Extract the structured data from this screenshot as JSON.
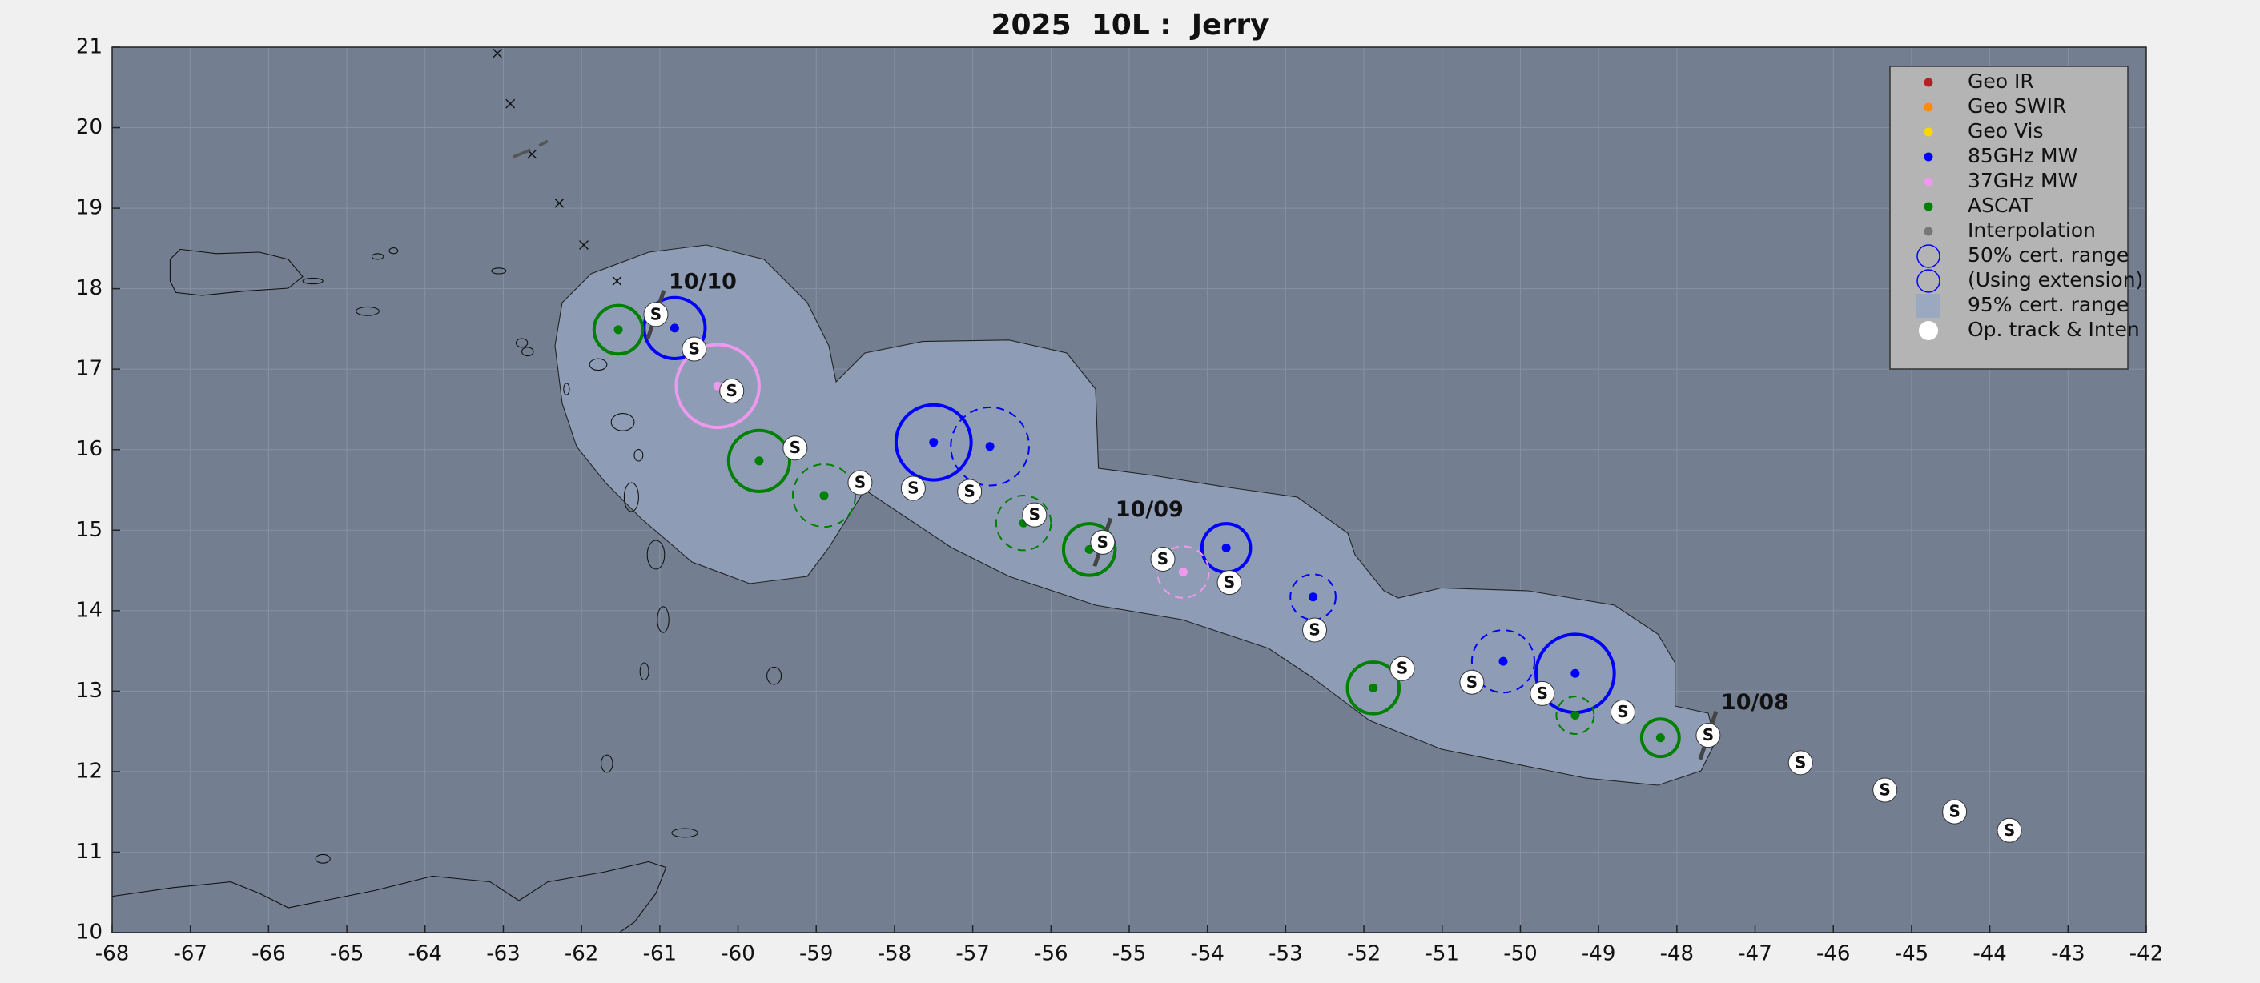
{
  "chart_data": {
    "type": "track",
    "title": "2025  10L :  Jerry",
    "xlim": [
      -68,
      -42
    ],
    "xticks": [
      -68,
      -67,
      -66,
      -65,
      -64,
      -63,
      -62,
      -61,
      -60,
      -59,
      -58,
      -57,
      -56,
      -55,
      -54,
      -53,
      -52,
      -51,
      -50,
      -49,
      -48,
      -47,
      -46,
      -45,
      -44,
      -43,
      -42
    ],
    "ylim": [
      10,
      21
    ],
    "yticks": [
      10,
      11,
      12,
      13,
      14,
      15,
      16,
      17,
      18,
      19,
      20,
      21
    ],
    "grid": true,
    "legend": "upper right",
    "series": [
      {
        "name": "Geo IR",
        "color": "#b22222",
        "x": [],
        "values": [],
        "radius": [],
        "extension": []
      },
      {
        "name": "Geo SWIR",
        "color": "#ff8c00",
        "x": [],
        "values": [],
        "radius": [],
        "extension": []
      },
      {
        "name": "Geo Vis",
        "color": "#ffd700",
        "x": [],
        "values": [],
        "radius": [],
        "extension": []
      },
      {
        "name": "85GHz MW",
        "color": "#0000ff",
        "x": [
          -60.81,
          -57.5,
          -53.76,
          -49.3,
          -56.78,
          -52.65,
          -50.22
        ],
        "values": [
          17.51,
          16.09,
          14.78,
          13.22,
          16.04,
          14.17,
          13.37
        ],
        "radius": [
          0.39,
          0.48,
          0.31,
          0.5,
          0.5,
          0.29,
          0.4
        ],
        "extension": [
          false,
          false,
          false,
          false,
          true,
          true,
          true
        ]
      },
      {
        "name": "37GHz MW",
        "color": "#ee99ee",
        "x": [
          -60.26,
          -54.31
        ],
        "values": [
          16.79,
          14.48
        ],
        "radius": [
          0.53,
          0.33
        ],
        "extension": [
          false,
          true
        ]
      },
      {
        "name": "ASCAT",
        "color": "#008000",
        "x": [
          -61.53,
          -59.73,
          -55.51,
          -51.88,
          -48.21,
          -58.9,
          -56.35,
          -49.3
        ],
        "values": [
          17.49,
          15.86,
          14.76,
          13.04,
          12.42,
          15.43,
          15.09,
          12.7
        ],
        "radius": [
          0.31,
          0.39,
          0.33,
          0.33,
          0.24,
          0.4,
          0.35,
          0.24
        ],
        "extension": [
          false,
          false,
          false,
          false,
          false,
          true,
          true,
          true
        ]
      },
      {
        "name": "Interpolation",
        "color": "#777777",
        "x": [],
        "values": [],
        "radius": [],
        "extension": []
      },
      {
        "name": "Op. track & Inten",
        "color": "#ffffff",
        "x": [
          -61.05,
          -60.56,
          -60.08,
          -59.27,
          -58.44,
          -57.76,
          -57.04,
          -56.21,
          -55.34,
          -54.57,
          -53.72,
          -52.63,
          -51.51,
          -50.62,
          -49.72,
          -48.69,
          -47.6,
          -46.42,
          -45.34,
          -44.45,
          -43.75
        ],
        "values": [
          17.68,
          17.25,
          16.73,
          16.02,
          15.59,
          15.52,
          15.48,
          15.19,
          14.85,
          14.64,
          14.35,
          13.76,
          13.28,
          13.11,
          12.97,
          12.74,
          12.45,
          12.11,
          11.77,
          11.5,
          11.27
        ],
        "intensity": [
          "S",
          "S",
          "S",
          "S",
          "S",
          "S",
          "S",
          "S",
          "S",
          "S",
          "S",
          "S",
          "S",
          "S",
          "S",
          "S",
          "S",
          "S",
          "S",
          "S",
          "S"
        ],
        "dates": [
          "10/10",
          null,
          null,
          null,
          null,
          null,
          null,
          null,
          "10/09",
          null,
          null,
          null,
          null,
          null,
          null,
          null,
          "10/08",
          null,
          null,
          null,
          null
        ]
      }
    ],
    "range_labels": [
      "50% cert. range",
      "(Using extension)",
      "95% cert. range"
    ],
    "range_color": "#9aa8c0"
  }
}
